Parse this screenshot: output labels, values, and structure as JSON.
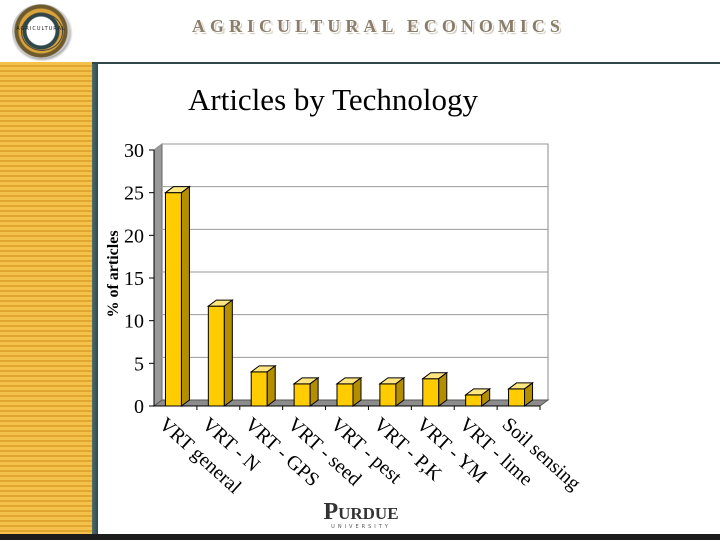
{
  "header": {
    "department": "AGRICULTURAL ECONOMICS",
    "seal_text": "AGRICULTURAL"
  },
  "slide": {
    "title": "Articles by Technology"
  },
  "footer": {
    "logo_main": "Purdue",
    "logo_sub": "UNIVERSITY"
  },
  "colors": {
    "bar_front": "#ffcc00",
    "bar_top": "#ffe680",
    "bar_side": "#b38f00",
    "accent_stripe": "#f4c24a",
    "teal": "#2f4748"
  },
  "chart_data": {
    "type": "bar",
    "title": "Articles by Technology",
    "xlabel": "",
    "ylabel": "% of articles",
    "ylim": [
      0,
      30
    ],
    "yticks": [
      0,
      5,
      10,
      15,
      20,
      25,
      30
    ],
    "grid": true,
    "legend": "none",
    "categories": [
      "VRT general",
      "VRT - N",
      "VRT - GPS",
      "VRT - seed",
      "VRT - pest",
      "VRT - P,K",
      "VRT - YM",
      "VRT - lime",
      "Soil sensing"
    ],
    "values": [
      25,
      11.7,
      4,
      2.6,
      2.6,
      2.6,
      3.2,
      1.3,
      2
    ]
  }
}
